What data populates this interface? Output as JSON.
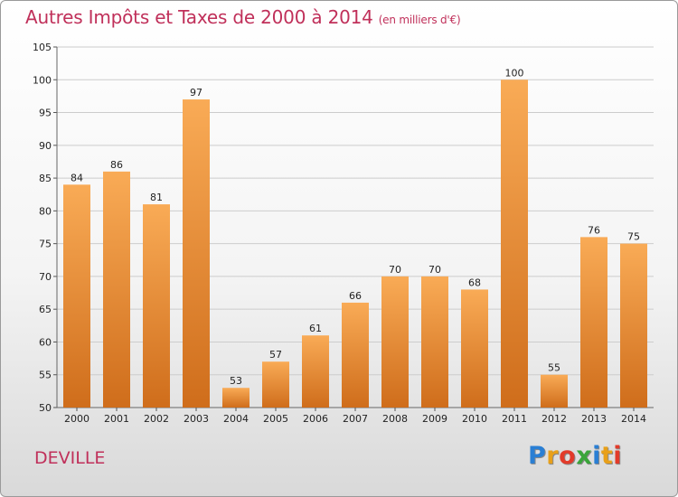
{
  "header": {
    "title": "Autres Impôts et Taxes de 2000 à 2014",
    "subtitle": "(en milliers d'€)"
  },
  "footer": {
    "city": "DEVILLE",
    "logo": "Proxiti"
  },
  "colors": {
    "title": "#c0305a",
    "bar_top": "#f9ab56",
    "bar_bottom": "#cf6d1b",
    "grid": "#cccccc"
  },
  "chart_data": {
    "type": "bar",
    "title": "Autres Impôts et Taxes de 2000 à 2014",
    "subtitle": "(en milliers d'€)",
    "categories": [
      "2000",
      "2001",
      "2002",
      "2003",
      "2004",
      "2005",
      "2006",
      "2007",
      "2008",
      "2009",
      "2010",
      "2011",
      "2012",
      "2013",
      "2014"
    ],
    "values": [
      84,
      86,
      81,
      97,
      53,
      57,
      61,
      66,
      70,
      70,
      68,
      100,
      55,
      76,
      75
    ],
    "ylim": [
      50,
      105
    ],
    "yticks": [
      50,
      55,
      60,
      65,
      70,
      75,
      80,
      85,
      90,
      95,
      100,
      105
    ],
    "grid": true,
    "xlabel": "",
    "ylabel": ""
  }
}
